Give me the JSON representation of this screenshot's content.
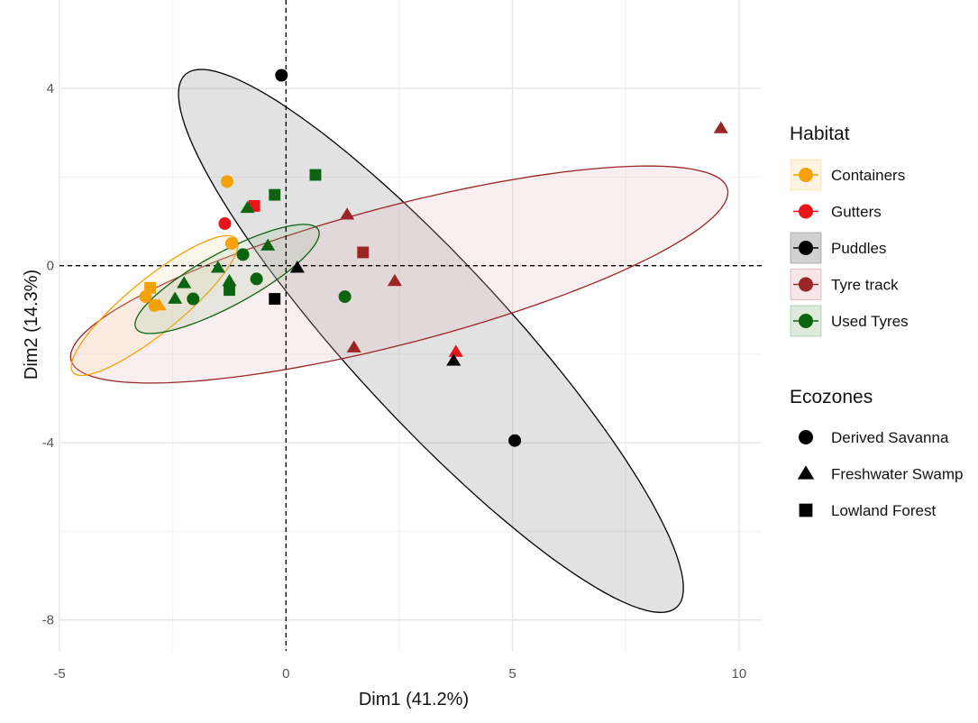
{
  "chart_data": {
    "type": "scatter",
    "xlabel": "Dim1 (41.2%)",
    "ylabel": "Dim2 (14.3%)",
    "xlim": [
      -5,
      10.5
    ],
    "ylim": [
      -8.7,
      6
    ],
    "x_ticks": [
      -5,
      0,
      5,
      10
    ],
    "y_ticks": [
      -8,
      -4,
      0,
      4
    ],
    "grid": true,
    "reference_lines": {
      "x": 0,
      "y": 0,
      "style": "dashed"
    },
    "legend_position": "right",
    "habitat_legend": {
      "title": "Habitat",
      "items": [
        {
          "name": "Containers",
          "color": "#f5a10a"
        },
        {
          "name": "Gutters",
          "color": "#e8141a"
        },
        {
          "name": "Puddles",
          "color": "#000000"
        },
        {
          "name": "Tyre track",
          "color": "#9b2424"
        },
        {
          "name": "Used Tyres",
          "color": "#0d6410"
        }
      ]
    },
    "ecozone_legend": {
      "title": "Ecozones",
      "items": [
        {
          "name": "Derived Savanna",
          "shape": "circle"
        },
        {
          "name": "Freshwater Swamp",
          "shape": "triangle"
        },
        {
          "name": "Lowland Forest",
          "shape": "square"
        }
      ]
    },
    "ellipses": [
      {
        "habitat": "Puddles",
        "cx": 3.2,
        "cy": -1.7,
        "rx": 8.1,
        "ry": 1.75,
        "angle_deg": -48,
        "color": "#000000",
        "fill": "#7a7a7a"
      },
      {
        "habitat": "Tyre track",
        "cx": 2.5,
        "cy": -0.2,
        "rx": 7.5,
        "ry": 1.55,
        "angle_deg": 15,
        "color": "#9b2424",
        "fill": "#e7b8bb"
      },
      {
        "habitat": "Containers",
        "cx": -2.9,
        "cy": -0.9,
        "rx": 2.35,
        "ry": 0.6,
        "angle_deg": 40,
        "color": "#f5a10a",
        "fill": "#fbe0a8"
      },
      {
        "habitat": "Used Tyres",
        "cx": -1.3,
        "cy": -0.3,
        "rx": 2.3,
        "ry": 0.6,
        "angle_deg": 29,
        "color": "#0d6410",
        "fill": "#9dc49c"
      }
    ],
    "points": [
      {
        "x": -1.3,
        "y": 1.9,
        "habitat": "Containers",
        "ecozone": "Derived Savanna"
      },
      {
        "x": -1.2,
        "y": 0.5,
        "habitat": "Containers",
        "ecozone": "Derived Savanna"
      },
      {
        "x": -3.1,
        "y": -0.7,
        "habitat": "Containers",
        "ecozone": "Derived Savanna"
      },
      {
        "x": -2.9,
        "y": -0.9,
        "habitat": "Containers",
        "ecozone": "Derived Savanna"
      },
      {
        "x": -3.0,
        "y": -0.5,
        "habitat": "Containers",
        "ecozone": "Lowland Forest"
      },
      {
        "x": -2.8,
        "y": -0.9,
        "habitat": "Containers",
        "ecozone": "Freshwater Swamp"
      },
      {
        "x": -1.35,
        "y": 0.95,
        "habitat": "Gutters",
        "ecozone": "Derived Savanna"
      },
      {
        "x": -0.7,
        "y": 1.35,
        "habitat": "Gutters",
        "ecozone": "Lowland Forest"
      },
      {
        "x": 3.75,
        "y": -1.95,
        "habitat": "Gutters",
        "ecozone": "Freshwater Swamp"
      },
      {
        "x": -0.1,
        "y": 4.3,
        "habitat": "Puddles",
        "ecozone": "Derived Savanna"
      },
      {
        "x": 5.05,
        "y": -3.95,
        "habitat": "Puddles",
        "ecozone": "Derived Savanna"
      },
      {
        "x": 0.25,
        "y": -0.05,
        "habitat": "Puddles",
        "ecozone": "Freshwater Swamp"
      },
      {
        "x": -0.25,
        "y": -0.75,
        "habitat": "Puddles",
        "ecozone": "Lowland Forest"
      },
      {
        "x": 3.7,
        "y": -2.15,
        "habitat": "Puddles",
        "ecozone": "Freshwater Swamp"
      },
      {
        "x": 9.6,
        "y": 3.1,
        "habitat": "Tyre track",
        "ecozone": "Freshwater Swamp"
      },
      {
        "x": 1.35,
        "y": 1.15,
        "habitat": "Tyre track",
        "ecozone": "Freshwater Swamp"
      },
      {
        "x": 1.7,
        "y": 0.3,
        "habitat": "Tyre track",
        "ecozone": "Lowland Forest"
      },
      {
        "x": 2.4,
        "y": -0.35,
        "habitat": "Tyre track",
        "ecozone": "Freshwater Swamp"
      },
      {
        "x": 1.5,
        "y": -1.85,
        "habitat": "Tyre track",
        "ecozone": "Freshwater Swamp"
      },
      {
        "x": 0.65,
        "y": 2.05,
        "habitat": "Used Tyres",
        "ecozone": "Lowland Forest"
      },
      {
        "x": -0.25,
        "y": 1.6,
        "habitat": "Used Tyres",
        "ecozone": "Lowland Forest"
      },
      {
        "x": -0.85,
        "y": 1.3,
        "habitat": "Used Tyres",
        "ecozone": "Freshwater Swamp"
      },
      {
        "x": -0.4,
        "y": 0.45,
        "habitat": "Used Tyres",
        "ecozone": "Freshwater Swamp"
      },
      {
        "x": -0.95,
        "y": 0.25,
        "habitat": "Used Tyres",
        "ecozone": "Derived Savanna"
      },
      {
        "x": -0.65,
        "y": -0.3,
        "habitat": "Used Tyres",
        "ecozone": "Derived Savanna"
      },
      {
        "x": -1.5,
        "y": -0.05,
        "habitat": "Used Tyres",
        "ecozone": "Freshwater Swamp"
      },
      {
        "x": -1.25,
        "y": -0.35,
        "habitat": "Used Tyres",
        "ecozone": "Freshwater Swamp"
      },
      {
        "x": -1.25,
        "y": -0.55,
        "habitat": "Used Tyres",
        "ecozone": "Lowland Forest"
      },
      {
        "x": -2.25,
        "y": -0.4,
        "habitat": "Used Tyres",
        "ecozone": "Freshwater Swamp"
      },
      {
        "x": -2.05,
        "y": -0.75,
        "habitat": "Used Tyres",
        "ecozone": "Derived Savanna"
      },
      {
        "x": -2.45,
        "y": -0.75,
        "habitat": "Used Tyres",
        "ecozone": "Freshwater Swamp"
      },
      {
        "x": 1.3,
        "y": -0.7,
        "habitat": "Used Tyres",
        "ecozone": "Derived Savanna"
      }
    ]
  }
}
